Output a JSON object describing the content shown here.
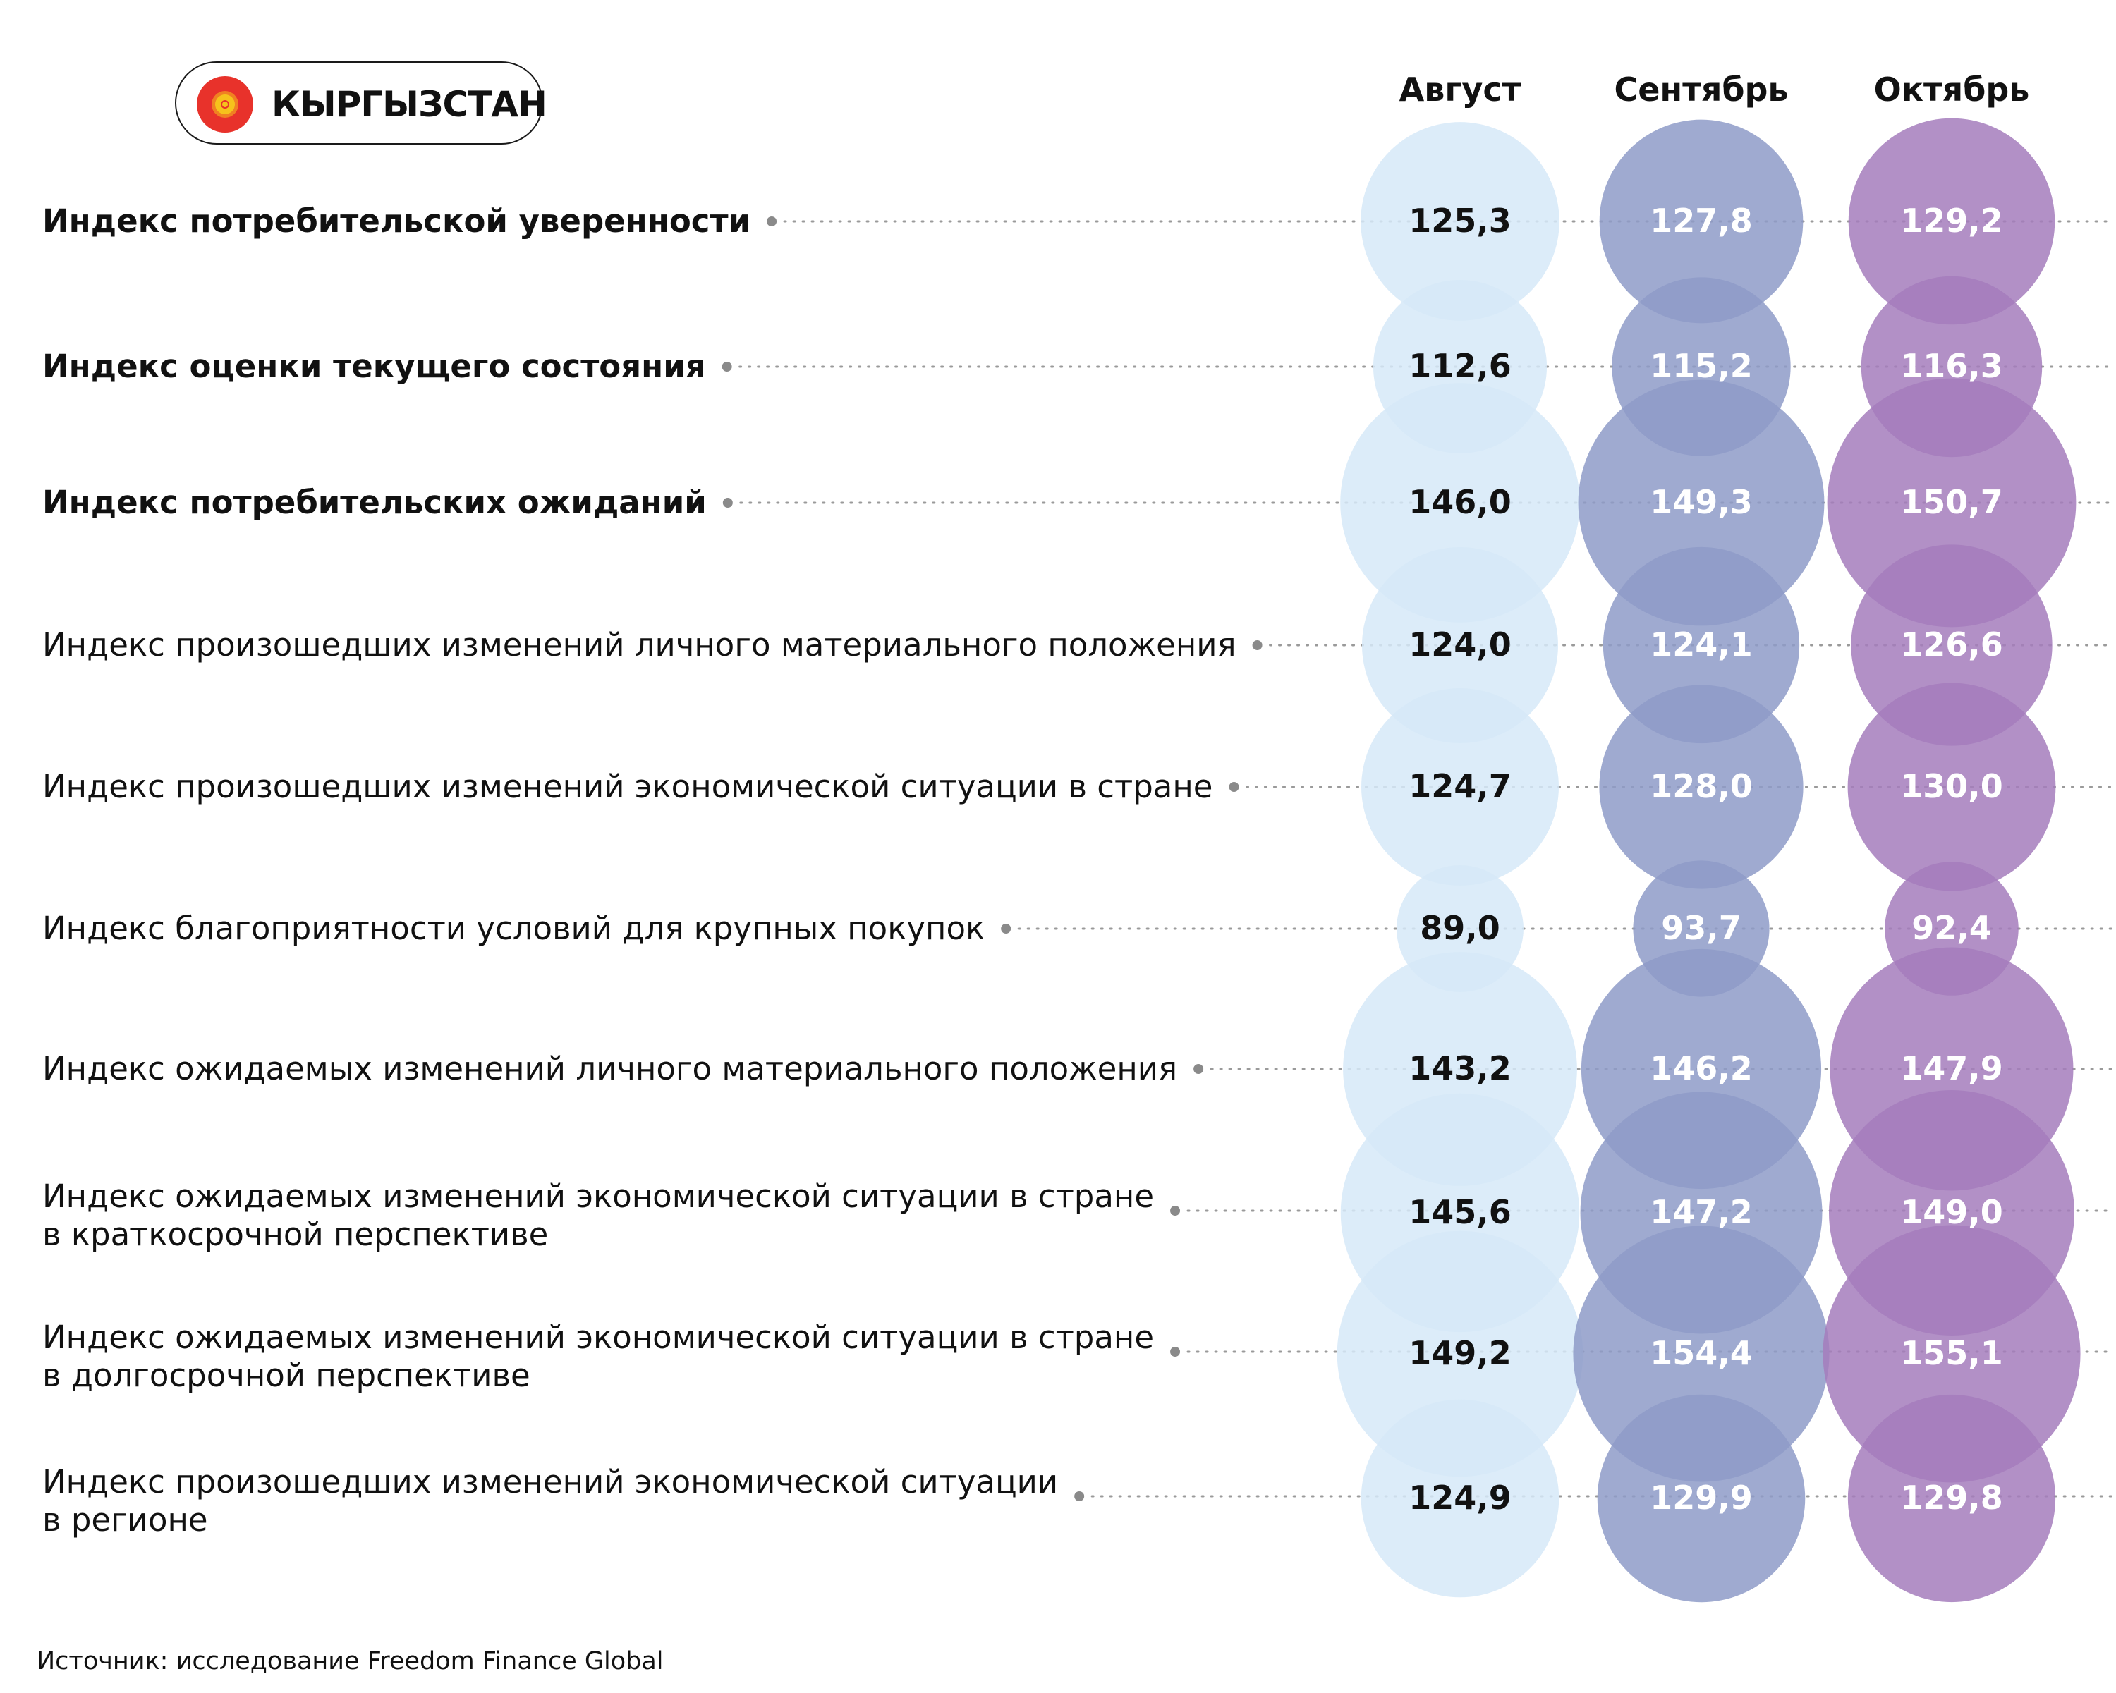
{
  "country": "КЫРГЫЗСТАН",
  "source": "Источник: исследование Freedom Finance Global",
  "colors": {
    "august": "#d6e9f8",
    "september": "#8e9bc8",
    "october": "#a57cbc",
    "flag_red": "#e8322b",
    "flag_sun": "#f6c21c"
  },
  "chart_data": {
    "type": "table",
    "columns": [
      "Август",
      "Сентябрь",
      "Октябрь"
    ],
    "rows": [
      {
        "label": [
          "Индекс потребительской уверенности"
        ],
        "bold": true,
        "values": [
          "125,3",
          "127,8",
          "129,2"
        ]
      },
      {
        "label": [
          "Индекс оценки текущего состояния"
        ],
        "bold": true,
        "values": [
          "112,6",
          "115,2",
          "116,3"
        ]
      },
      {
        "label": [
          "Индекс потребительских ожиданий"
        ],
        "bold": true,
        "values": [
          "146,0",
          "149,3",
          "150,7"
        ]
      },
      {
        "label": [
          "Индекс произошедших изменений личного материального положения"
        ],
        "bold": false,
        "values": [
          "124,0",
          "124,1",
          "126,6"
        ]
      },
      {
        "label": [
          "Индекс произошедших изменений экономической ситуации в стране"
        ],
        "bold": false,
        "values": [
          "124,7",
          "128,0",
          "130,0"
        ]
      },
      {
        "label": [
          "Индекс благоприятности условий для крупных покупок"
        ],
        "bold": false,
        "values": [
          "89,0",
          "93,7",
          "92,4"
        ]
      },
      {
        "label": [
          "Индекс ожидаемых изменений личного материального положения"
        ],
        "bold": false,
        "values": [
          "143,2",
          "146,2",
          "147,9"
        ]
      },
      {
        "label": [
          "Индекс ожидаемых изменений экономической ситуации в стране",
          "в краткосрочной перспективе"
        ],
        "bold": false,
        "values": [
          "145,6",
          "147,2",
          "149,0"
        ]
      },
      {
        "label": [
          "Индекс ожидаемых изменений экономической ситуации в стране",
          "в долгосрочной перспективе"
        ],
        "bold": false,
        "values": [
          "149,2",
          "154,4",
          "155,1"
        ]
      },
      {
        "label": [
          "Индекс произошедших изменений экономической ситуации",
          "в регионе"
        ],
        "bold": false,
        "values": [
          "124,9",
          "129,9",
          "129,8"
        ]
      }
    ]
  }
}
